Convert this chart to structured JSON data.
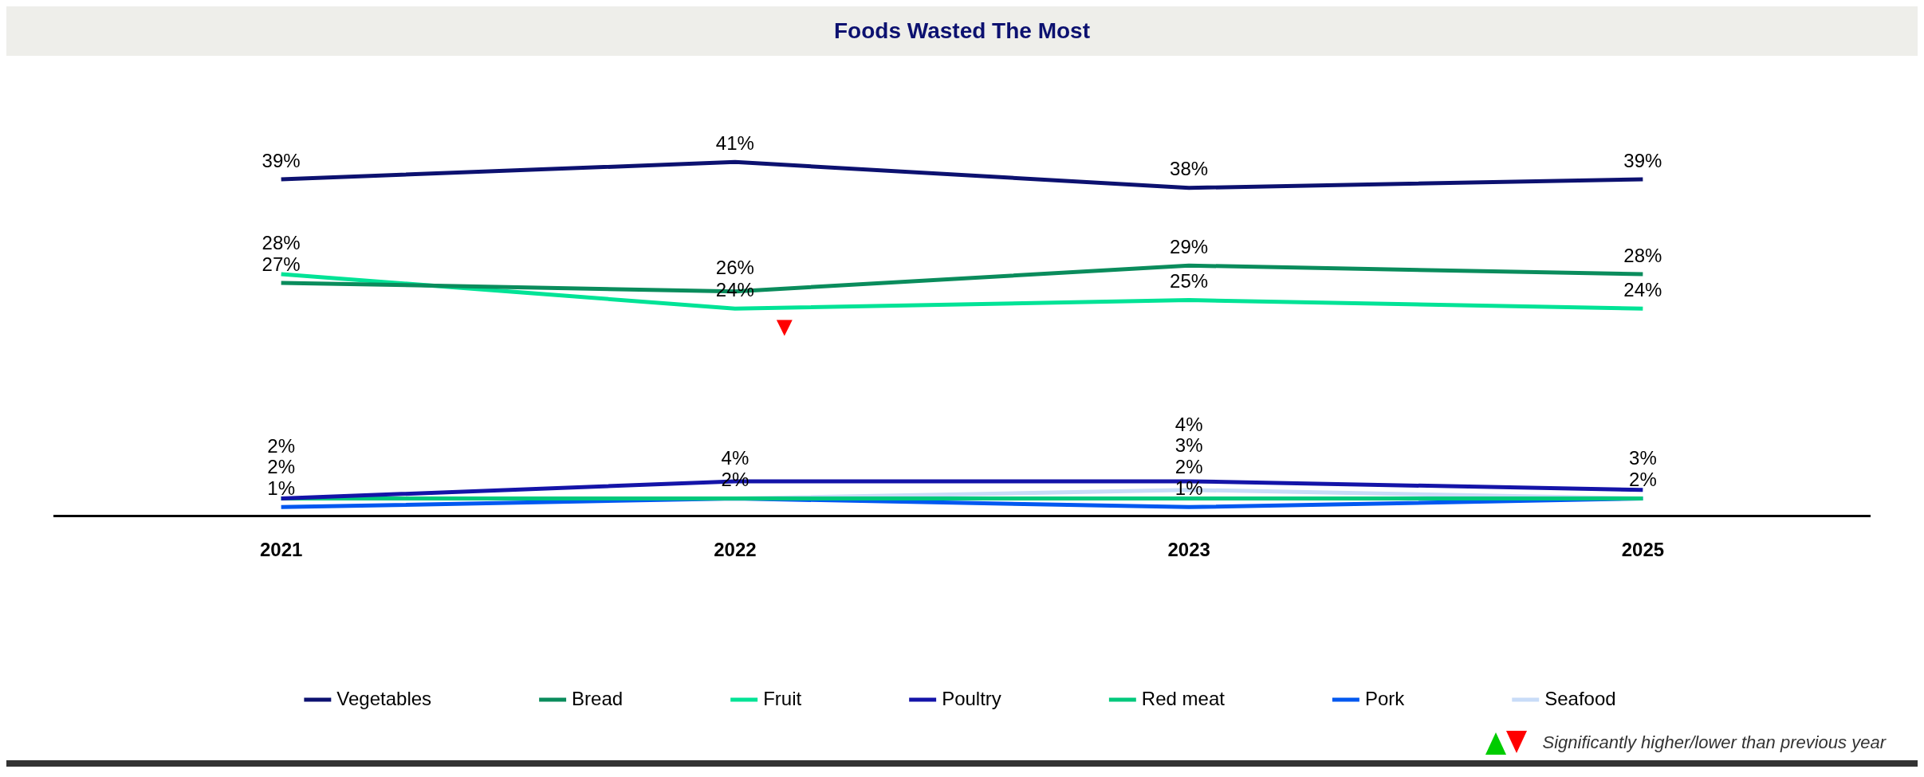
{
  "chart_data": {
    "type": "line",
    "title": "Foods Wasted The Most",
    "categories": [
      "2021",
      "2022",
      "2023",
      "2025"
    ],
    "series": [
      {
        "name": "Vegetables",
        "color": "#0c1170",
        "values": [
          39,
          41,
          38,
          39
        ],
        "value_labels": [
          "39%",
          "41%",
          "38%",
          "39%"
        ]
      },
      {
        "name": "Bread",
        "color": "#0a8c5c",
        "values": [
          27,
          26,
          29,
          28
        ],
        "value_labels": [
          "27%",
          "26%",
          "29%",
          "28%"
        ]
      },
      {
        "name": "Fruit",
        "color": "#00e396",
        "values": [
          28,
          24,
          25,
          24
        ],
        "value_labels": [
          "28%",
          "24%",
          "25%",
          "24%"
        ]
      },
      {
        "name": "Poultry",
        "color": "#1414a8",
        "values": [
          2,
          4,
          4,
          3
        ],
        "value_labels": [
          "2%",
          "4%",
          "4%",
          "3%"
        ]
      },
      {
        "name": "Red meat",
        "color": "#00c87c",
        "values": [
          2,
          2,
          2,
          2
        ],
        "value_labels": [
          null,
          null,
          "2%",
          "2%"
        ]
      },
      {
        "name": "Pork",
        "color": "#0058f0",
        "values": [
          1,
          2,
          1,
          2
        ],
        "value_labels": [
          "1%",
          null,
          "1%",
          null
        ]
      },
      {
        "name": "Seafood",
        "color": "#c8dcf8",
        "values": [
          2,
          2,
          3,
          2
        ],
        "value_labels": [
          "2%",
          "2%",
          "3%",
          null
        ]
      }
    ],
    "legend": "bottom",
    "marker": "none",
    "grid": false,
    "tick_labels": "x",
    "annotations": [
      {
        "text": "▼",
        "x": "2022",
        "y": 24
      },
      "Significantly higher/lower than previous year"
    ]
  }
}
